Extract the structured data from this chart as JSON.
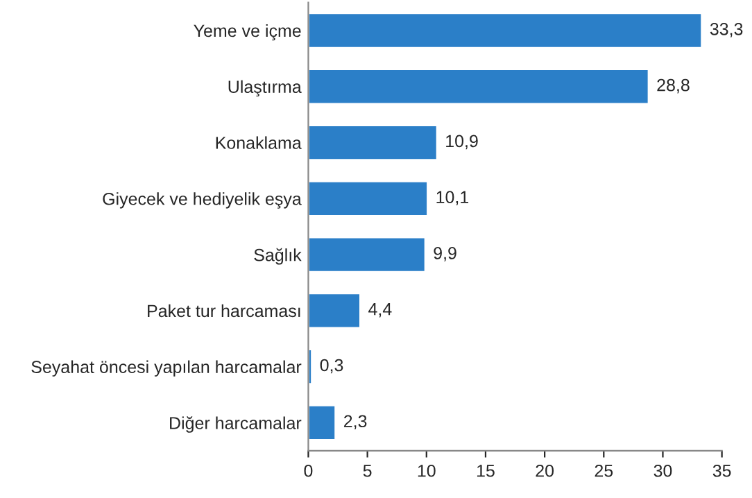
{
  "chart_data": {
    "type": "bar",
    "orientation": "horizontal",
    "categories": [
      "Yeme ve içme",
      "Ulaştırma",
      "Konaklama",
      "Giyecek ve hediyelik eşya",
      "Sağlık",
      "Paket tur harcaması",
      "Seyahat öncesi yapılan harcamalar",
      "Diğer harcamalar"
    ],
    "values": [
      33.3,
      28.8,
      10.9,
      10.1,
      9.9,
      4.4,
      0.3,
      2.3
    ],
    "value_labels": [
      "33,3",
      "28,8",
      "10,9",
      "10,1",
      "9,9",
      "4,4",
      "0,3",
      "2,3"
    ],
    "color": "#2b7fc8",
    "xlim": [
      0,
      35
    ],
    "xticks": [
      0,
      5,
      10,
      15,
      20,
      25,
      30,
      35
    ],
    "grid": false,
    "legend": false
  }
}
